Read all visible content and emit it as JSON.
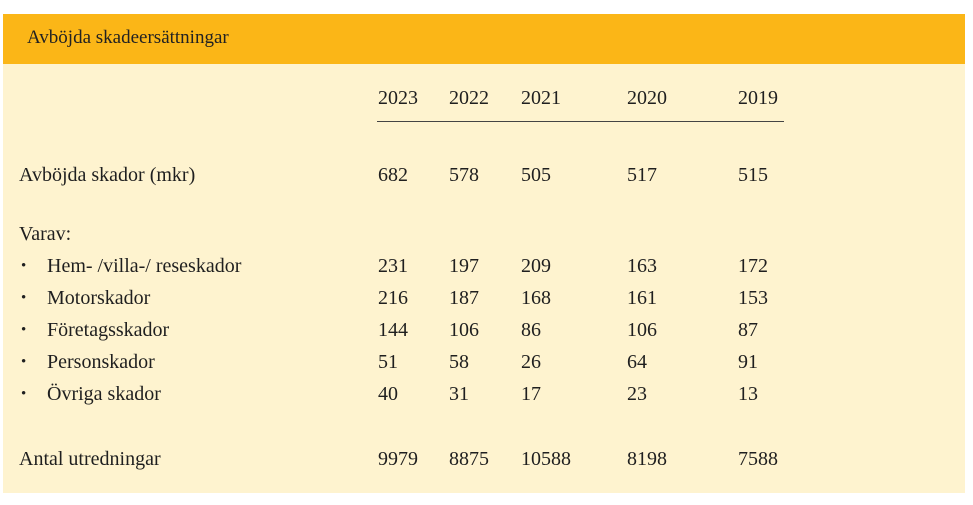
{
  "table": {
    "title": "Avböjda skadeersättningar",
    "years": [
      "2023",
      "2022",
      "2021",
      "2020",
      "2019"
    ],
    "rows": [
      {
        "label": "Avböjda skador (mkr)",
        "values": [
          "682",
          "578",
          "505",
          "517",
          "515"
        ]
      },
      {
        "label": "Varav:",
        "values": []
      },
      {
        "label": "Hem- /villa-/ reseskador",
        "bullet": true,
        "values": [
          "231",
          "197",
          "209",
          "163",
          "172"
        ]
      },
      {
        "label": "Motorskador",
        "bullet": true,
        "values": [
          "216",
          "187",
          "168",
          "161",
          "153"
        ]
      },
      {
        "label": "Företagsskador",
        "bullet": true,
        "values": [
          "144",
          "106",
          "86",
          "106",
          "87"
        ]
      },
      {
        "label": "Personskador",
        "bullet": true,
        "values": [
          "51",
          "58",
          "26",
          "64",
          "91"
        ]
      },
      {
        "label": "Övriga skador",
        "bullet": true,
        "values": [
          "40",
          "31",
          "17",
          "23",
          "13"
        ]
      },
      {
        "label": "Antal utredningar",
        "values": [
          "9979",
          "8875",
          "10588",
          "8198",
          "7588"
        ]
      }
    ],
    "bullet_glyph": "•"
  }
}
